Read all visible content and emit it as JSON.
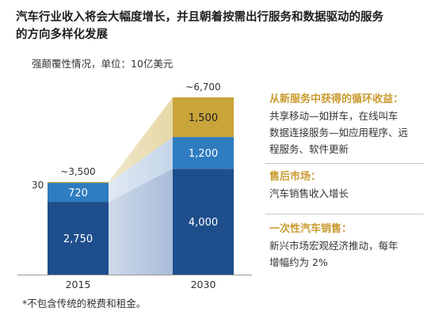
{
  "header": {
    "title": "汽车行业收入将会大幅度增长，并且朝着按需出行服务和数据驱动的服务的方向多样化发展",
    "subtitle": "强颠覆性情况，单位：10亿美元",
    "footnote": "*不包含传统的税费和租金。"
  },
  "chart_data": {
    "type": "bar",
    "stacked": true,
    "categories": [
      "2015",
      "2030"
    ],
    "series": [
      {
        "name": "一次性汽车销售",
        "values": [
          2750,
          4000
        ],
        "labels": [
          "2,750",
          "4,000"
        ],
        "color": "#1f4e8c"
      },
      {
        "name": "售后市场",
        "values": [
          720,
          1200
        ],
        "labels": [
          "720",
          "1,200"
        ],
        "color": "#2f7cc0"
      },
      {
        "name": "从新服务中获得的循环收益",
        "values": [
          30,
          1500
        ],
        "labels": [
          "30",
          "1,500"
        ],
        "color": "#c9a43a"
      }
    ],
    "totals": [
      "~3,500",
      "~6,700"
    ],
    "ylim": [
      0,
      6700
    ]
  },
  "legend": {
    "recurring": {
      "heading": "从新服务中获得的循环收益：",
      "lines": [
        "共享移动—如拼车，在线叫车",
        "数据连接服务—如应用程序、远",
        "程服务、软件更新"
      ]
    },
    "aftermarket": {
      "heading": "售后市场：",
      "lines": [
        "汽车销售收入增长"
      ]
    },
    "onetime": {
      "heading": "一次性汽车销售：",
      "lines": [
        "新兴市场宏观经济推动，每年",
        "增幅约为 2%"
      ]
    }
  },
  "colors": {
    "navy": "#1f4e8c",
    "blue": "#2f7cc0",
    "gold": "#c9a43a",
    "legend_heading": "#c99a2e"
  }
}
